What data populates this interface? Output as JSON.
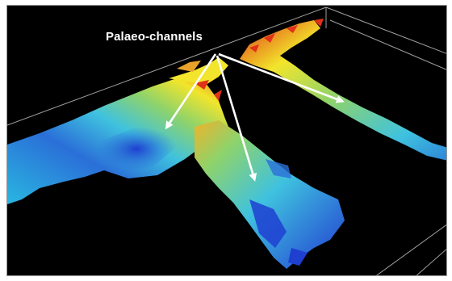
{
  "annotation": {
    "label": "Palaeo-channels"
  },
  "colors": {
    "background": "#000000",
    "wireframe": "#bdbdbd",
    "arrow": "#ffffff",
    "low": "#1f3fd1",
    "mid": "#39c6e3",
    "midHigh": "#8fd36a",
    "high": "#f2e52b",
    "peak": "#e03218"
  },
  "scene": {
    "arrow_count": 3
  }
}
